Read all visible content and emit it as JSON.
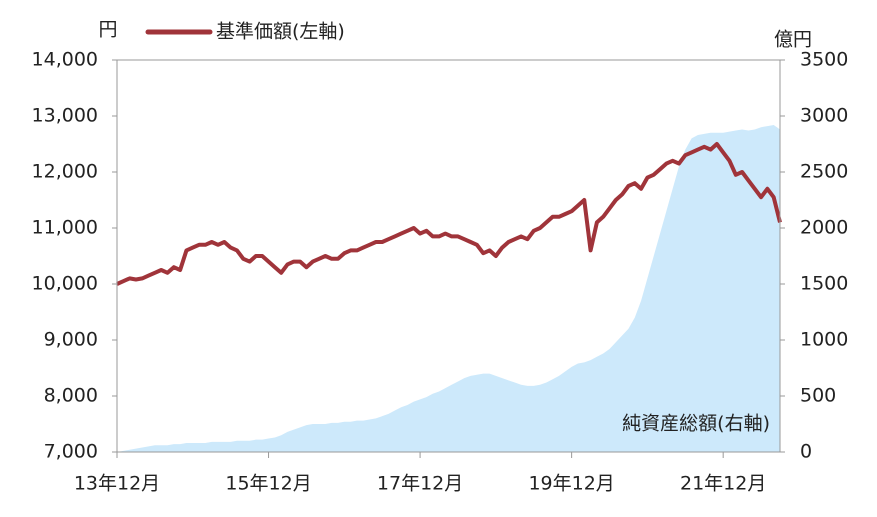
{
  "chart_data": {
    "type": "line",
    "y_unit": "円",
    "y2_unit": "億円",
    "x": [
      "2013-12",
      "2014-01",
      "2014-02",
      "2014-03",
      "2014-04",
      "2014-05",
      "2014-06",
      "2014-07",
      "2014-08",
      "2014-09",
      "2014-10",
      "2014-11",
      "2014-12",
      "2015-01",
      "2015-02",
      "2015-03",
      "2015-04",
      "2015-05",
      "2015-06",
      "2015-07",
      "2015-08",
      "2015-09",
      "2015-10",
      "2015-11",
      "2015-12",
      "2016-01",
      "2016-02",
      "2016-03",
      "2016-04",
      "2016-05",
      "2016-06",
      "2016-07",
      "2016-08",
      "2016-09",
      "2016-10",
      "2016-11",
      "2016-12",
      "2017-01",
      "2017-02",
      "2017-03",
      "2017-04",
      "2017-05",
      "2017-06",
      "2017-07",
      "2017-08",
      "2017-09",
      "2017-10",
      "2017-11",
      "2017-12",
      "2018-01",
      "2018-02",
      "2018-03",
      "2018-04",
      "2018-05",
      "2018-06",
      "2018-07",
      "2018-08",
      "2018-09",
      "2018-10",
      "2018-11",
      "2018-12",
      "2019-01",
      "2019-02",
      "2019-03",
      "2019-04",
      "2019-05",
      "2019-06",
      "2019-07",
      "2019-08",
      "2019-09",
      "2019-10",
      "2019-11",
      "2019-12",
      "2020-01",
      "2020-02",
      "2020-03",
      "2020-04",
      "2020-05",
      "2020-06",
      "2020-07",
      "2020-08",
      "2020-09",
      "2020-10",
      "2020-11",
      "2020-12",
      "2021-01",
      "2021-02",
      "2021-03",
      "2021-04",
      "2021-05",
      "2021-06",
      "2021-07",
      "2021-08",
      "2021-09",
      "2021-10",
      "2021-11",
      "2021-12",
      "2022-01",
      "2022-02",
      "2022-03",
      "2022-04",
      "2022-05",
      "2022-06",
      "2022-07",
      "2022-08",
      "2022-09"
    ],
    "series": [
      {
        "name": "基準価額(左軸)",
        "color": "#a0343a",
        "type": "line",
        "values": [
          10000,
          10050,
          10100,
          10080,
          10100,
          10150,
          10200,
          10250,
          10200,
          10300,
          10250,
          10600,
          10650,
          10700,
          10700,
          10750,
          10700,
          10750,
          10650,
          10600,
          10450,
          10400,
          10500,
          10500,
          10400,
          10300,
          10200,
          10350,
          10400,
          10400,
          10300,
          10400,
          10450,
          10500,
          10450,
          10450,
          10550,
          10600,
          10600,
          10650,
          10700,
          10750,
          10750,
          10800,
          10850,
          10900,
          10950,
          11000,
          10900,
          10950,
          10850,
          10850,
          10900,
          10850,
          10850,
          10800,
          10750,
          10700,
          10550,
          10600,
          10500,
          10650,
          10750,
          10800,
          10850,
          10800,
          10950,
          11000,
          11100,
          11200,
          11200,
          11250,
          11300,
          11400,
          11500,
          10600,
          11100,
          11200,
          11350,
          11500,
          11600,
          11750,
          11800,
          11700,
          11900,
          11950,
          12050,
          12150,
          12200,
          12150,
          12300,
          12350,
          12400,
          12450,
          12400,
          12500,
          12350,
          12200,
          11950,
          12000,
          11850,
          11700,
          11550,
          11700,
          11550,
          11100
        ]
      },
      {
        "name": "純資産総額(右軸)",
        "color": "#cde9fb",
        "type": "area",
        "axis": "y2",
        "values": [
          0,
          10,
          20,
          30,
          40,
          50,
          60,
          60,
          60,
          70,
          70,
          80,
          80,
          80,
          80,
          90,
          90,
          90,
          90,
          100,
          100,
          100,
          110,
          110,
          120,
          130,
          150,
          180,
          200,
          220,
          240,
          250,
          250,
          250,
          260,
          260,
          270,
          270,
          280,
          280,
          290,
          300,
          320,
          340,
          370,
          400,
          420,
          450,
          470,
          490,
          520,
          540,
          570,
          600,
          630,
          660,
          680,
          690,
          700,
          700,
          680,
          660,
          640,
          620,
          600,
          590,
          590,
          600,
          620,
          650,
          680,
          720,
          760,
          790,
          800,
          820,
          850,
          880,
          920,
          980,
          1040,
          1100,
          1200,
          1350,
          1550,
          1750,
          1950,
          2150,
          2350,
          2550,
          2700,
          2800,
          2830,
          2840,
          2850,
          2850,
          2850,
          2860,
          2870,
          2880,
          2870,
          2880,
          2900,
          2910,
          2920,
          2880
        ]
      }
    ],
    "ylim": [
      7000,
      14000
    ],
    "yticks": [
      {
        "value": 7000,
        "label": "7,000"
      },
      {
        "value": 8000,
        "label": "8,000"
      },
      {
        "value": 9000,
        "label": "9,000"
      },
      {
        "value": 10000,
        "label": "10,000"
      },
      {
        "value": 11000,
        "label": "11,000"
      },
      {
        "value": 12000,
        "label": "12,000"
      },
      {
        "value": 13000,
        "label": "13,000"
      },
      {
        "value": 14000,
        "label": "14,000"
      }
    ],
    "y2lim": [
      0,
      3500
    ],
    "y2ticks": [
      0,
      500,
      1000,
      1500,
      2000,
      2500,
      3000,
      3500
    ],
    "xticks": [
      {
        "value": "2013-12",
        "label": "13年12月"
      },
      {
        "value": "2015-12",
        "label": "15年12月"
      },
      {
        "value": "2017-12",
        "label": "17年12月"
      },
      {
        "value": "2019-12",
        "label": "19年12月"
      },
      {
        "value": "2021-12",
        "label": "21年12月"
      }
    ]
  }
}
